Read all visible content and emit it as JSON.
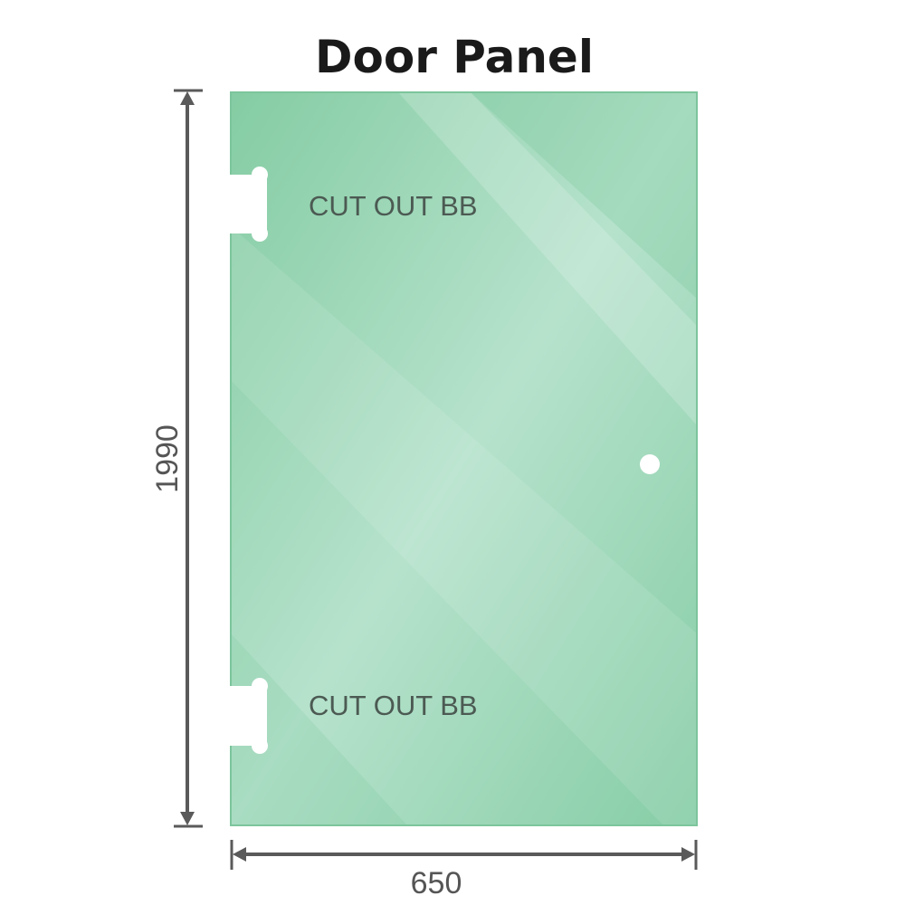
{
  "title": "Door Panel",
  "panel": {
    "cutout_top_label": "CUT OUT BB",
    "cutout_bottom_label": "CUT OUT BB",
    "glass_color": "#8fd0ac",
    "glass_highlight_color": "#bde6d2"
  },
  "dimensions": {
    "height": "1990",
    "width": "650",
    "line_color": "#5a5a5a"
  }
}
